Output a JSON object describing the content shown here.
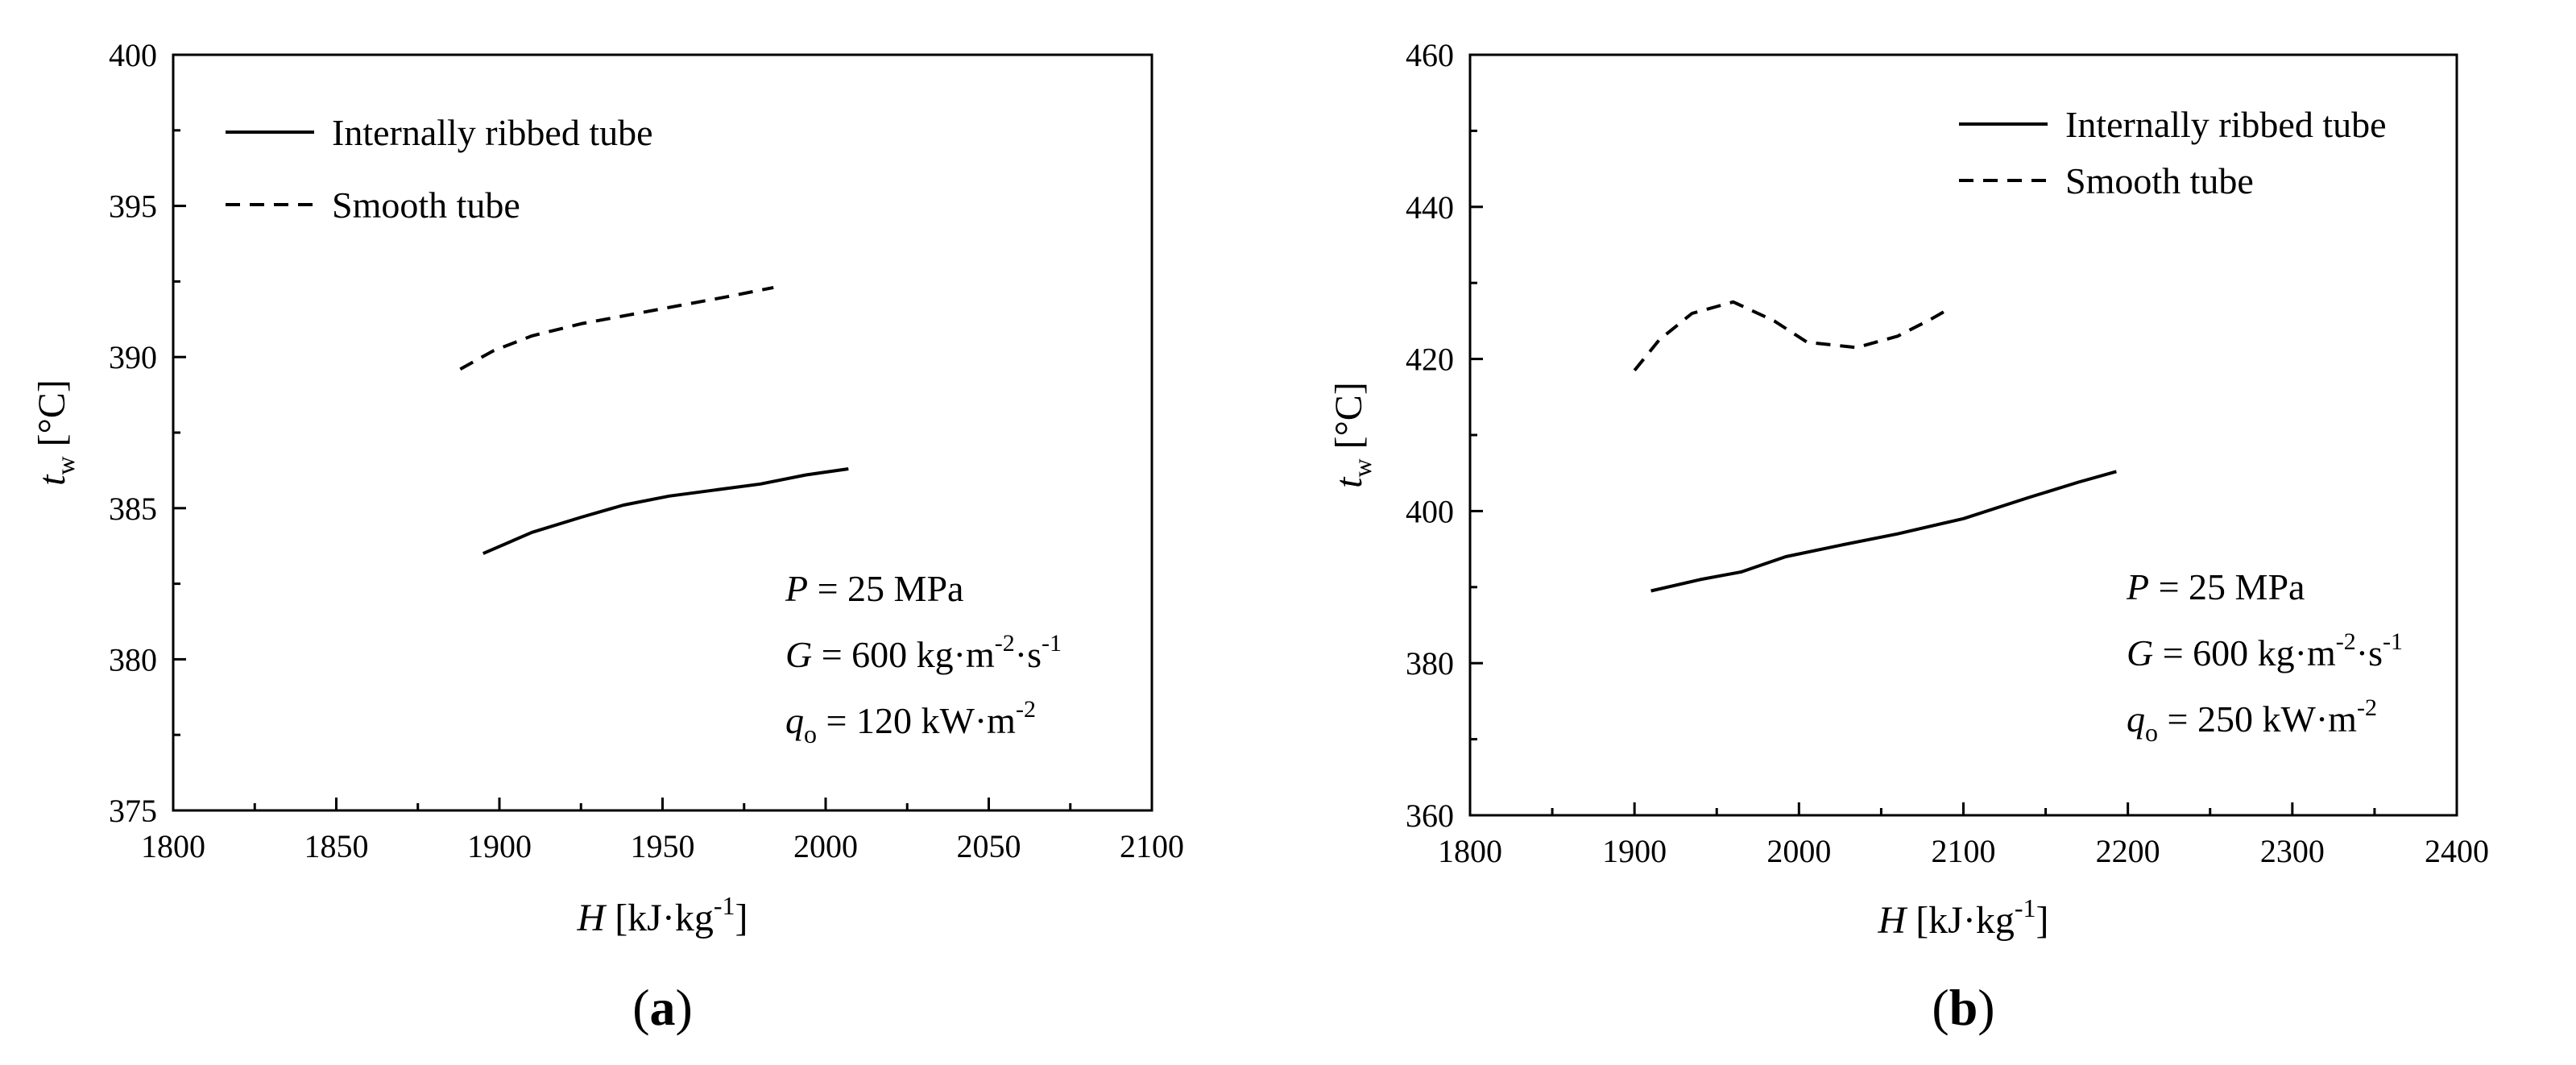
{
  "chart_data": [
    {
      "type": "line",
      "panel_label_open": "(",
      "panel_label_letter": "a",
      "panel_label_close": ")",
      "xlabel": {
        "var": "H",
        "unit_pre": "[kJ·kg",
        "unit_sup": "-1",
        "unit_post": "]"
      },
      "ylabel": {
        "var": "t",
        "sub": "w",
        "unit": "[°C]"
      },
      "xlim": [
        1800,
        2100
      ],
      "ylim": [
        375,
        400
      ],
      "xticks": [
        1800,
        1850,
        1900,
        1950,
        2000,
        2050,
        2100
      ],
      "yticks": [
        375,
        380,
        385,
        390,
        395,
        400
      ],
      "grid": false,
      "legend_position": "top-left",
      "series": [
        {
          "name": "Internally ribbed tube",
          "style": "solid",
          "x": [
            1895,
            1910,
            1925,
            1938,
            1952,
            1966,
            1980,
            1994,
            2007
          ],
          "y": [
            383.5,
            384.2,
            384.7,
            385.1,
            385.4,
            385.6,
            385.8,
            386.1,
            386.3
          ]
        },
        {
          "name": "Smooth tube",
          "style": "dashed",
          "x": [
            1888,
            1898,
            1910,
            1925,
            1940,
            1955,
            1970,
            1984
          ],
          "y": [
            389.6,
            390.2,
            390.7,
            391.1,
            391.4,
            391.7,
            392.0,
            392.3
          ]
        }
      ],
      "annotations": [
        {
          "var": "P",
          "text": " = 25 MPa"
        },
        {
          "var": "G",
          "text": " = 600 kg·m",
          "sup1": "-2",
          "mid": "·s",
          "sup2": "-1"
        },
        {
          "var": "q",
          "sub": "o",
          "text": " = 120 kW·m",
          "sup1": "-2"
        }
      ]
    },
    {
      "type": "line",
      "panel_label_open": "(",
      "panel_label_letter": "b",
      "panel_label_close": ")",
      "xlabel": {
        "var": "H",
        "unit_pre": "[kJ·kg",
        "unit_sup": "-1",
        "unit_post": "]"
      },
      "ylabel": {
        "var": "t",
        "sub": "w",
        "unit": "[°C]"
      },
      "xlim": [
        1800,
        2400
      ],
      "ylim": [
        360,
        460
      ],
      "xticks": [
        1800,
        1900,
        2000,
        2100,
        2200,
        2300,
        2400
      ],
      "yticks": [
        360,
        380,
        400,
        420,
        440,
        460
      ],
      "grid": false,
      "legend_position": "top-right",
      "series": [
        {
          "name": "Internally ribbed tube",
          "style": "solid",
          "x": [
            1910,
            1940,
            1965,
            1992,
            2025,
            2060,
            2100,
            2140,
            2170,
            2193
          ],
          "y": [
            389.5,
            391.0,
            392.0,
            394.0,
            395.5,
            397.0,
            399.0,
            401.8,
            403.8,
            405.2
          ]
        },
        {
          "name": "Smooth tube",
          "style": "dashed",
          "x": [
            1900,
            1915,
            1935,
            1960,
            1985,
            2005,
            2035,
            2060,
            2080,
            2093
          ],
          "y": [
            418.5,
            422.5,
            426.0,
            427.5,
            425.0,
            422.2,
            421.5,
            423.0,
            425.2,
            426.8
          ]
        }
      ],
      "annotations": [
        {
          "var": "P",
          "text": " = 25 MPa"
        },
        {
          "var": "G",
          "text": " = 600 kg·m",
          "sup1": "-2",
          "mid": "·s",
          "sup2": "-1"
        },
        {
          "var": "q",
          "sub": "o",
          "text": " = 250 kW·m",
          "sup1": "-2"
        }
      ]
    }
  ]
}
